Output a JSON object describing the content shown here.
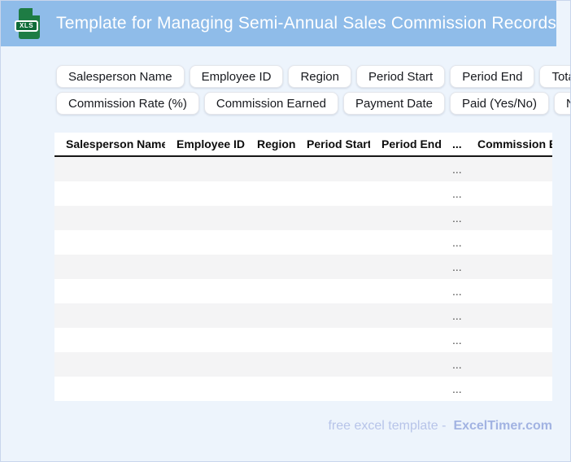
{
  "header": {
    "title": "Template for Managing Semi-Annual Sales Commission Records",
    "file_icon_label": "XLS"
  },
  "field_chips": {
    "row1": [
      "Salesperson Name",
      "Employee ID",
      "Region",
      "Period Start",
      "Period End",
      "Total Sales"
    ],
    "row2": [
      "Commission Rate (%)",
      "Commission Earned",
      "Payment Date",
      "Paid (Yes/No)",
      "Notes"
    ]
  },
  "table": {
    "columns": [
      "Salesperson Name",
      "Employee ID",
      "Region",
      "Period Start",
      "Period End",
      "...",
      "Commission Earned"
    ],
    "row_count": 10,
    "cell_placeholder": "...",
    "placeholder_column_index": 5
  },
  "footer": {
    "text": "free excel template -",
    "brand": "ExcelTimer.com"
  },
  "colors": {
    "header_bg": "#8fbce9",
    "page_bg": "#edf4fc",
    "row_alt": "#f4f4f5",
    "icon_green": "#1e7c44",
    "footer_text": "#b7c4e9",
    "footer_brand": "#a2b3e2"
  }
}
